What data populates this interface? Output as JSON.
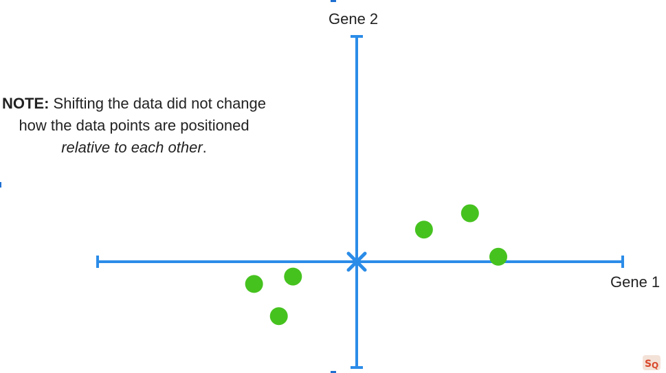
{
  "note": {
    "bold": "NOTE:",
    "text1": " Shifting the data did not change how the data points are positioned ",
    "italic": "relative to each other",
    "text2": "."
  },
  "axes": {
    "x_label": "Gene 1",
    "y_label": "Gene 2",
    "color": "#2b8ce8"
  },
  "points": {
    "color": "#46c21f",
    "items": [
      {
        "x": -1.45,
        "y": -0.45
      },
      {
        "x": -0.9,
        "y": -0.3
      },
      {
        "x": -1.1,
        "y": -1.1
      },
      {
        "x": 0.95,
        "y": 0.65
      },
      {
        "x": 1.6,
        "y": 0.98
      },
      {
        "x": 2.0,
        "y": 0.1
      }
    ]
  },
  "origin_marker_color": "#2b8ce8",
  "logo_icon": "sq-logo-icon"
}
